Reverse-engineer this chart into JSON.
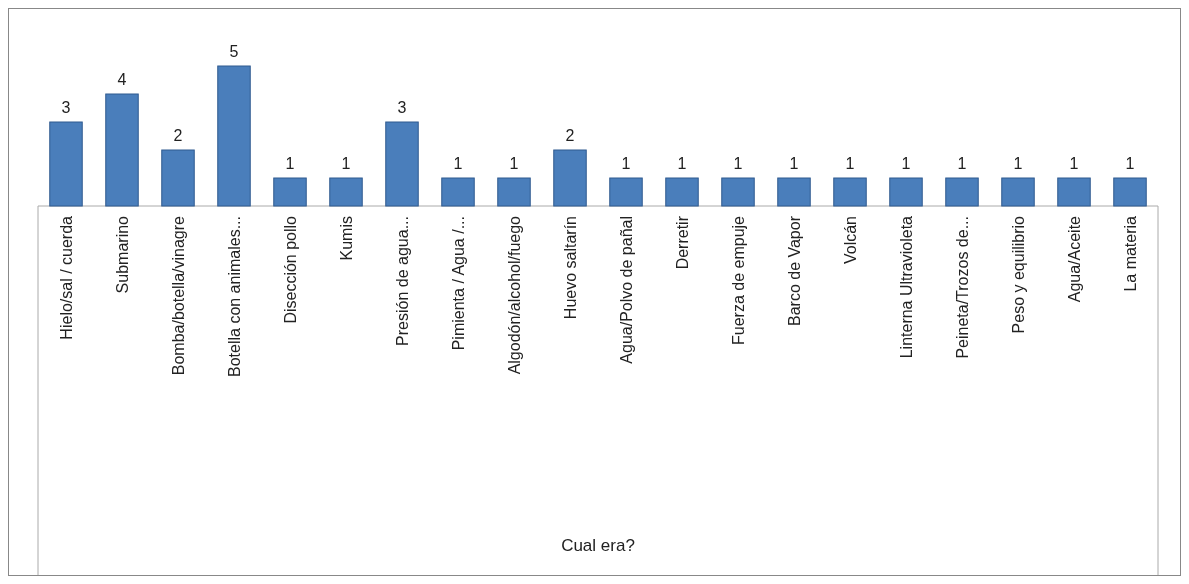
{
  "chart_data": {
    "type": "bar",
    "annotations": [
      "Cual era?"
    ],
    "categories": [
      "Hielo/sal / cuerda",
      "Submarino",
      "Bomba/botella/vinagre",
      "Botella con animales...",
      "Disección pollo",
      "Kumis",
      "Presión de agua...",
      "Pimienta / Agua /...",
      "Algodón/alcohol/fuego",
      "Huevo saltarín",
      "Agua/Polvo de pañal",
      "Derretir",
      "Fuerza de empuje",
      "Barco de Vapor",
      "Volcán",
      "Linterna Ultravioleta",
      "Peineta/Trozos de...",
      "Peso y equilibrio",
      "Agua/Aceite",
      "La materia"
    ],
    "values": [
      3,
      4,
      2,
      5,
      1,
      1,
      3,
      1,
      1,
      2,
      1,
      1,
      1,
      1,
      1,
      1,
      1,
      1,
      1,
      1
    ],
    "color": "#4a7ebb",
    "data_labels": true
  }
}
